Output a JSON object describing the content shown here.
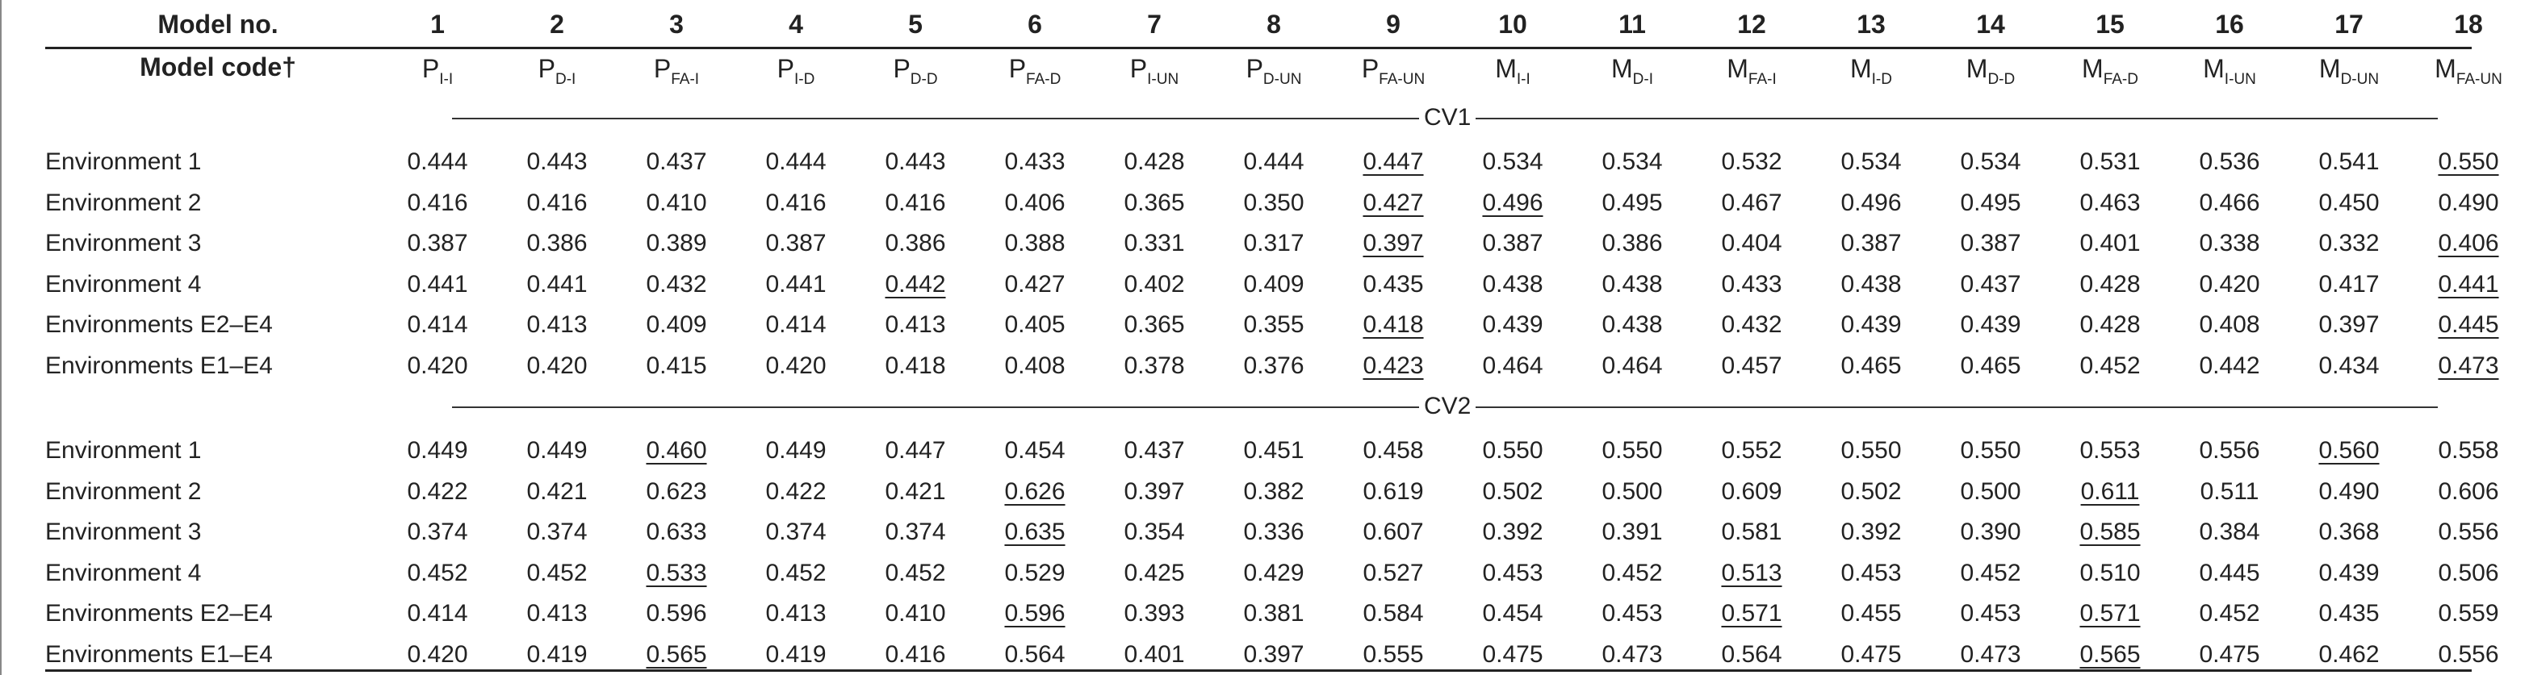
{
  "table": {
    "header_label_model_no": "Model no.",
    "header_label_model_code": "Model code†",
    "model_numbers": [
      "1",
      "2",
      "3",
      "4",
      "5",
      "6",
      "7",
      "8",
      "9",
      "10",
      "11",
      "12",
      "13",
      "14",
      "15",
      "16",
      "17",
      "18"
    ],
    "model_codes": [
      {
        "base": "P",
        "sub": "I-I"
      },
      {
        "base": "P",
        "sub": "D-I"
      },
      {
        "base": "P",
        "sub": "FA-I"
      },
      {
        "base": "P",
        "sub": "I-D"
      },
      {
        "base": "P",
        "sub": "D-D"
      },
      {
        "base": "P",
        "sub": "FA-D"
      },
      {
        "base": "P",
        "sub": "I-UN"
      },
      {
        "base": "P",
        "sub": "D-UN"
      },
      {
        "base": "P",
        "sub": "FA-UN"
      },
      {
        "base": "M",
        "sub": "I-I"
      },
      {
        "base": "M",
        "sub": "D-I"
      },
      {
        "base": "M",
        "sub": "FA-I"
      },
      {
        "base": "M",
        "sub": "I-D"
      },
      {
        "base": "M",
        "sub": "D-D"
      },
      {
        "base": "M",
        "sub": "FA-D"
      },
      {
        "base": "M",
        "sub": "I-UN"
      },
      {
        "base": "M",
        "sub": "D-UN"
      },
      {
        "base": "M",
        "sub": "FA-UN"
      }
    ],
    "sections": [
      {
        "name": "CV1",
        "rows": [
          {
            "label": "Environment 1",
            "values": [
              "0.444",
              "0.443",
              "0.437",
              "0.444",
              "0.443",
              "0.433",
              "0.428",
              "0.444",
              "0.447",
              "0.534",
              "0.534",
              "0.532",
              "0.534",
              "0.534",
              "0.531",
              "0.536",
              "0.541",
              "0.550"
            ],
            "underlined": [
              9,
              18
            ]
          },
          {
            "label": "Environment 2",
            "values": [
              "0.416",
              "0.416",
              "0.410",
              "0.416",
              "0.416",
              "0.406",
              "0.365",
              "0.350",
              "0.427",
              "0.496",
              "0.495",
              "0.467",
              "0.496",
              "0.495",
              "0.463",
              "0.466",
              "0.450",
              "0.490"
            ],
            "underlined": [
              9,
              10
            ]
          },
          {
            "label": "Environment 3",
            "values": [
              "0.387",
              "0.386",
              "0.389",
              "0.387",
              "0.386",
              "0.388",
              "0.331",
              "0.317",
              "0.397",
              "0.387",
              "0.386",
              "0.404",
              "0.387",
              "0.387",
              "0.401",
              "0.338",
              "0.332",
              "0.406"
            ],
            "underlined": [
              9,
              18
            ]
          },
          {
            "label": "Environment 4",
            "values": [
              "0.441",
              "0.441",
              "0.432",
              "0.441",
              "0.442",
              "0.427",
              "0.402",
              "0.409",
              "0.435",
              "0.438",
              "0.438",
              "0.433",
              "0.438",
              "0.437",
              "0.428",
              "0.420",
              "0.417",
              "0.441"
            ],
            "underlined": [
              5,
              18
            ]
          },
          {
            "label": "Environments E2–E4",
            "values": [
              "0.414",
              "0.413",
              "0.409",
              "0.414",
              "0.413",
              "0.405",
              "0.365",
              "0.355",
              "0.418",
              "0.439",
              "0.438",
              "0.432",
              "0.439",
              "0.439",
              "0.428",
              "0.408",
              "0.397",
              "0.445"
            ],
            "underlined": [
              9,
              18
            ]
          },
          {
            "label": "Environments E1–E4",
            "values": [
              "0.420",
              "0.420",
              "0.415",
              "0.420",
              "0.418",
              "0.408",
              "0.378",
              "0.376",
              "0.423",
              "0.464",
              "0.464",
              "0.457",
              "0.465",
              "0.465",
              "0.452",
              "0.442",
              "0.434",
              "0.473"
            ],
            "underlined": [
              9,
              18
            ]
          }
        ]
      },
      {
        "name": "CV2",
        "rows": [
          {
            "label": "Environment 1",
            "values": [
              "0.449",
              "0.449",
              "0.460",
              "0.449",
              "0.447",
              "0.454",
              "0.437",
              "0.451",
              "0.458",
              "0.550",
              "0.550",
              "0.552",
              "0.550",
              "0.550",
              "0.553",
              "0.556",
              "0.560",
              "0.558"
            ],
            "underlined": [
              3,
              17
            ]
          },
          {
            "label": "Environment 2",
            "values": [
              "0.422",
              "0.421",
              "0.623",
              "0.422",
              "0.421",
              "0.626",
              "0.397",
              "0.382",
              "0.619",
              "0.502",
              "0.500",
              "0.609",
              "0.502",
              "0.500",
              "0.611",
              "0.511",
              "0.490",
              "0.606"
            ],
            "underlined": [
              6,
              15
            ]
          },
          {
            "label": "Environment 3",
            "values": [
              "0.374",
              "0.374",
              "0.633",
              "0.374",
              "0.374",
              "0.635",
              "0.354",
              "0.336",
              "0.607",
              "0.392",
              "0.391",
              "0.581",
              "0.392",
              "0.390",
              "0.585",
              "0.384",
              "0.368",
              "0.556"
            ],
            "underlined": [
              6,
              15
            ]
          },
          {
            "label": "Environment 4",
            "values": [
              "0.452",
              "0.452",
              "0.533",
              "0.452",
              "0.452",
              "0.529",
              "0.425",
              "0.429",
              "0.527",
              "0.453",
              "0.452",
              "0.513",
              "0.453",
              "0.452",
              "0.510",
              "0.445",
              "0.439",
              "0.506"
            ],
            "underlined": [
              3,
              12
            ]
          },
          {
            "label": "Environments E2–E4",
            "values": [
              "0.414",
              "0.413",
              "0.596",
              "0.413",
              "0.410",
              "0.596",
              "0.393",
              "0.381",
              "0.584",
              "0.454",
              "0.453",
              "0.571",
              "0.455",
              "0.453",
              "0.571",
              "0.452",
              "0.435",
              "0.559"
            ],
            "underlined": [
              6,
              12,
              15
            ]
          },
          {
            "label": "Environments E1–E4",
            "values": [
              "0.420",
              "0.419",
              "0.565",
              "0.419",
              "0.416",
              "0.564",
              "0.401",
              "0.397",
              "0.555",
              "0.475",
              "0.473",
              "0.564",
              "0.475",
              "0.473",
              "0.565",
              "0.475",
              "0.462",
              "0.556"
            ],
            "underlined": [
              3,
              15
            ]
          }
        ]
      }
    ]
  }
}
